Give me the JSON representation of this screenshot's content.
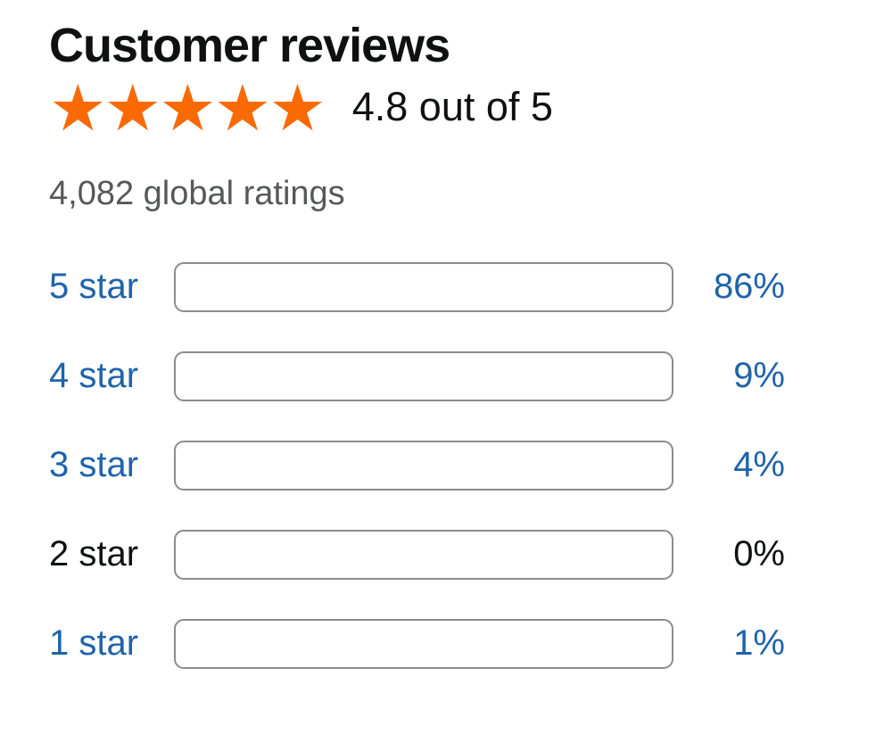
{
  "colors": {
    "star_orange": "#F96A05",
    "bar_fill": "#F96A05",
    "bar_border": "#8C8C8C",
    "link_blue": "#1F63AC",
    "text_dark": "#0F1111",
    "text_gray": "#565959"
  },
  "header": {
    "title": "Customer reviews",
    "rating_summary": "4.8 out of 5",
    "stars": {
      "glyph": "★",
      "count": 5,
      "value": 4.8,
      "max": 5
    }
  },
  "subheader": {
    "global_ratings": "4,082 global ratings"
  },
  "histogram": {
    "rows": [
      {
        "label": "5 star",
        "percent": 86,
        "percent_label": "86%",
        "linked": true
      },
      {
        "label": "4 star",
        "percent": 9,
        "percent_label": "9%",
        "linked": true
      },
      {
        "label": "3 star",
        "percent": 4,
        "percent_label": "4%",
        "linked": true
      },
      {
        "label": "2 star",
        "percent": 0,
        "percent_label": "0%",
        "linked": false
      },
      {
        "label": "1 star",
        "percent": 1,
        "percent_label": "1%",
        "linked": true
      }
    ]
  },
  "chart_data": {
    "type": "bar",
    "categories": [
      "5 star",
      "4 star",
      "3 star",
      "2 star",
      "1 star"
    ],
    "values": [
      86,
      9,
      4,
      0,
      1
    ],
    "value_unit": "%",
    "title": "Customer reviews",
    "xlabel": "",
    "ylabel": "",
    "xlim": [
      0,
      100
    ],
    "rating_average": 4.8,
    "rating_max": 5,
    "total_ratings_label": "4,082 global ratings"
  }
}
